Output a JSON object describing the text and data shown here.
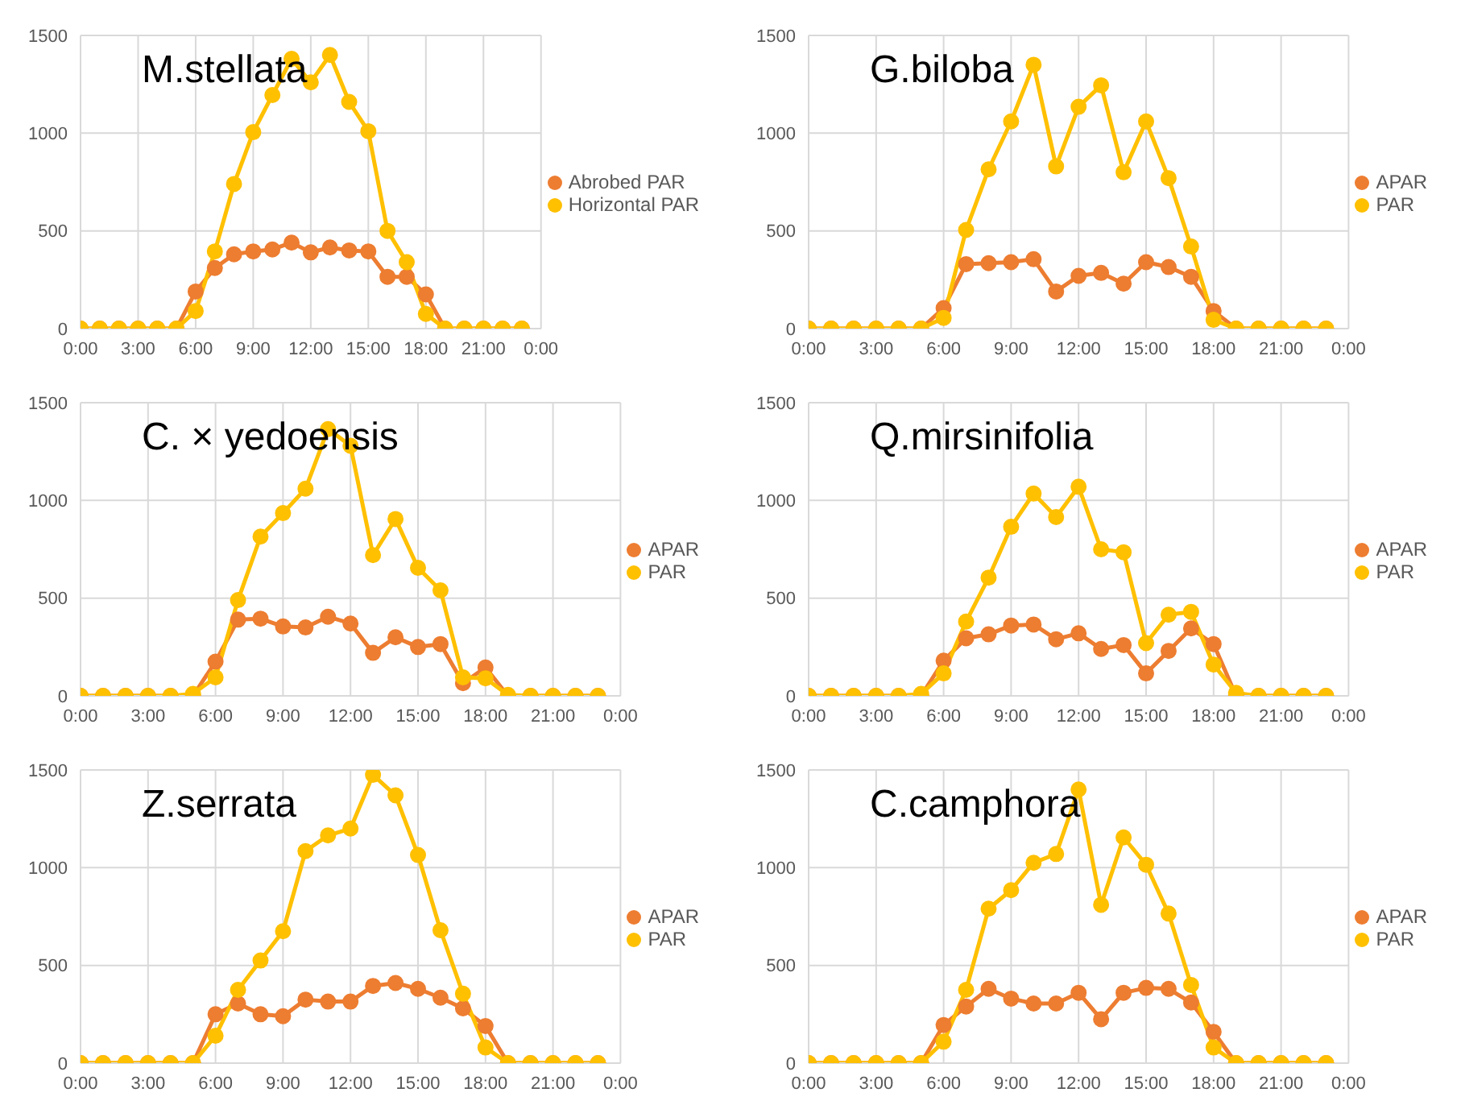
{
  "chart_data": [
    {
      "type": "line",
      "title": "M.stellata",
      "x": [
        0,
        1,
        2,
        3,
        4,
        5,
        6,
        7,
        8,
        9,
        10,
        11,
        12,
        13,
        14,
        15,
        16,
        17,
        18,
        19,
        20,
        21,
        22,
        23
      ],
      "xlim": [
        0,
        24
      ],
      "xticks": [
        {
          "value": 0,
          "label": "0:00"
        },
        {
          "value": 3,
          "label": "3:00"
        },
        {
          "value": 6,
          "label": "6:00"
        },
        {
          "value": 9,
          "label": "9:00"
        },
        {
          "value": 12,
          "label": "12:00"
        },
        {
          "value": 15,
          "label": "15:00"
        },
        {
          "value": 18,
          "label": "18:00"
        },
        {
          "value": 21,
          "label": "21:00"
        },
        {
          "value": 24,
          "label": "0:00"
        }
      ],
      "ylim": [
        0,
        1500
      ],
      "yticks": [
        0,
        500,
        1000,
        1500
      ],
      "grid": true,
      "legend": "right",
      "marker": "circle",
      "line_style": "solid",
      "series": [
        {
          "name": "Abrobed PAR",
          "color": "#ed7d31",
          "values": [
            0,
            0,
            0,
            0,
            0,
            0,
            190,
            310,
            380,
            395,
            405,
            440,
            390,
            415,
            400,
            395,
            265,
            265,
            175,
            0,
            0,
            0,
            0,
            0
          ]
        },
        {
          "name": "Horizontal PAR",
          "color": "#ffc000",
          "values": [
            0,
            0,
            0,
            0,
            0,
            0,
            90,
            395,
            740,
            1005,
            1195,
            1380,
            1260,
            1400,
            1160,
            1010,
            500,
            340,
            75,
            0,
            0,
            0,
            0,
            0
          ]
        }
      ]
    },
    {
      "type": "line",
      "title": "G.biloba",
      "x": [
        0,
        1,
        2,
        3,
        4,
        5,
        6,
        7,
        8,
        9,
        10,
        11,
        12,
        13,
        14,
        15,
        16,
        17,
        18,
        19,
        20,
        21,
        22,
        23
      ],
      "xlim": [
        0,
        24
      ],
      "xticks": [
        {
          "value": 0,
          "label": "0:00"
        },
        {
          "value": 3,
          "label": "3:00"
        },
        {
          "value": 6,
          "label": "6:00"
        },
        {
          "value": 9,
          "label": "9:00"
        },
        {
          "value": 12,
          "label": "12:00"
        },
        {
          "value": 15,
          "label": "15:00"
        },
        {
          "value": 18,
          "label": "18:00"
        },
        {
          "value": 21,
          "label": "21:00"
        },
        {
          "value": 24,
          "label": "0:00"
        }
      ],
      "ylim": [
        0,
        1500
      ],
      "yticks": [
        0,
        500,
        1000,
        1500
      ],
      "grid": true,
      "legend": "right",
      "marker": "circle",
      "line_style": "solid",
      "series": [
        {
          "name": "APAR",
          "color": "#ed7d31",
          "values": [
            0,
            0,
            0,
            0,
            0,
            0,
            105,
            330,
            335,
            340,
            355,
            190,
            270,
            285,
            230,
            340,
            315,
            265,
            90,
            0,
            0,
            0,
            0,
            0
          ]
        },
        {
          "name": "PAR",
          "color": "#ffc000",
          "values": [
            0,
            0,
            0,
            0,
            0,
            0,
            55,
            505,
            815,
            1060,
            1350,
            830,
            1135,
            1245,
            800,
            1060,
            770,
            420,
            45,
            0,
            0,
            0,
            0,
            0
          ]
        }
      ]
    },
    {
      "type": "line",
      "title": "C. × yedoensis",
      "x": [
        0,
        1,
        2,
        3,
        4,
        5,
        6,
        7,
        8,
        9,
        10,
        11,
        12,
        13,
        14,
        15,
        16,
        17,
        18,
        19,
        20,
        21,
        22,
        23
      ],
      "xlim": [
        0,
        24
      ],
      "xticks": [
        {
          "value": 0,
          "label": "0:00"
        },
        {
          "value": 3,
          "label": "3:00"
        },
        {
          "value": 6,
          "label": "6:00"
        },
        {
          "value": 9,
          "label": "9:00"
        },
        {
          "value": 12,
          "label": "12:00"
        },
        {
          "value": 15,
          "label": "15:00"
        },
        {
          "value": 18,
          "label": "18:00"
        },
        {
          "value": 21,
          "label": "21:00"
        },
        {
          "value": 24,
          "label": "0:00"
        }
      ],
      "ylim": [
        0,
        1500
      ],
      "yticks": [
        0,
        500,
        1000,
        1500
      ],
      "grid": true,
      "legend": "right",
      "marker": "circle",
      "line_style": "solid",
      "series": [
        {
          "name": "APAR",
          "color": "#ed7d31",
          "values": [
            0,
            0,
            0,
            0,
            0,
            0,
            175,
            390,
            395,
            355,
            350,
            405,
            370,
            220,
            300,
            250,
            265,
            65,
            145,
            0,
            0,
            0,
            0,
            0
          ]
        },
        {
          "name": "PAR",
          "color": "#ffc000",
          "values": [
            0,
            0,
            0,
            0,
            0,
            10,
            95,
            490,
            815,
            935,
            1060,
            1365,
            1280,
            720,
            905,
            655,
            540,
            95,
            90,
            5,
            0,
            0,
            0,
            0
          ]
        }
      ]
    },
    {
      "type": "line",
      "title": "Q.mirsinifolia",
      "x": [
        0,
        1,
        2,
        3,
        4,
        5,
        6,
        7,
        8,
        9,
        10,
        11,
        12,
        13,
        14,
        15,
        16,
        17,
        18,
        19,
        20,
        21,
        22,
        23
      ],
      "xlim": [
        0,
        24
      ],
      "xticks": [
        {
          "value": 0,
          "label": "0:00"
        },
        {
          "value": 3,
          "label": "3:00"
        },
        {
          "value": 6,
          "label": "6:00"
        },
        {
          "value": 9,
          "label": "9:00"
        },
        {
          "value": 12,
          "label": "12:00"
        },
        {
          "value": 15,
          "label": "15:00"
        },
        {
          "value": 18,
          "label": "18:00"
        },
        {
          "value": 21,
          "label": "21:00"
        },
        {
          "value": 24,
          "label": "0:00"
        }
      ],
      "ylim": [
        0,
        1500
      ],
      "yticks": [
        0,
        500,
        1000,
        1500
      ],
      "grid": true,
      "legend": "right",
      "marker": "circle",
      "line_style": "solid",
      "series": [
        {
          "name": "APAR",
          "color": "#ed7d31",
          "values": [
            0,
            0,
            0,
            0,
            0,
            0,
            180,
            295,
            315,
            360,
            365,
            290,
            320,
            240,
            260,
            115,
            230,
            345,
            265,
            0,
            0,
            0,
            0,
            0
          ]
        },
        {
          "name": "PAR",
          "color": "#ffc000",
          "values": [
            0,
            0,
            0,
            0,
            0,
            10,
            115,
            380,
            605,
            865,
            1035,
            915,
            1070,
            750,
            735,
            270,
            415,
            430,
            160,
            15,
            0,
            0,
            0,
            0
          ]
        }
      ]
    },
    {
      "type": "line",
      "title": "Z.serrata",
      "x": [
        0,
        1,
        2,
        3,
        4,
        5,
        6,
        7,
        8,
        9,
        10,
        11,
        12,
        13,
        14,
        15,
        16,
        17,
        18,
        19,
        20,
        21,
        22,
        23
      ],
      "xlim": [
        0,
        24
      ],
      "xticks": [
        {
          "value": 0,
          "label": "0:00"
        },
        {
          "value": 3,
          "label": "3:00"
        },
        {
          "value": 6,
          "label": "6:00"
        },
        {
          "value": 9,
          "label": "9:00"
        },
        {
          "value": 12,
          "label": "12:00"
        },
        {
          "value": 15,
          "label": "15:00"
        },
        {
          "value": 18,
          "label": "18:00"
        },
        {
          "value": 21,
          "label": "21:00"
        },
        {
          "value": 24,
          "label": "0:00"
        }
      ],
      "ylim": [
        0,
        1500
      ],
      "yticks": [
        0,
        500,
        1000,
        1500
      ],
      "grid": true,
      "legend": "right",
      "marker": "circle",
      "line_style": "solid",
      "series": [
        {
          "name": "APAR",
          "color": "#ed7d31",
          "values": [
            0,
            0,
            0,
            0,
            0,
            0,
            250,
            305,
            250,
            240,
            325,
            315,
            315,
            395,
            410,
            380,
            335,
            280,
            190,
            0,
            0,
            0,
            0,
            0
          ]
        },
        {
          "name": "PAR",
          "color": "#ffc000",
          "values": [
            0,
            0,
            0,
            0,
            0,
            0,
            140,
            375,
            525,
            675,
            1085,
            1165,
            1200,
            1475,
            1370,
            1065,
            680,
            355,
            80,
            0,
            0,
            0,
            0,
            0
          ]
        }
      ]
    },
    {
      "type": "line",
      "title": "C.camphora",
      "x": [
        0,
        1,
        2,
        3,
        4,
        5,
        6,
        7,
        8,
        9,
        10,
        11,
        12,
        13,
        14,
        15,
        16,
        17,
        18,
        19,
        20,
        21,
        22,
        23
      ],
      "xlim": [
        0,
        24
      ],
      "xticks": [
        {
          "value": 0,
          "label": "0:00"
        },
        {
          "value": 3,
          "label": "3:00"
        },
        {
          "value": 6,
          "label": "6:00"
        },
        {
          "value": 9,
          "label": "9:00"
        },
        {
          "value": 12,
          "label": "12:00"
        },
        {
          "value": 15,
          "label": "15:00"
        },
        {
          "value": 18,
          "label": "18:00"
        },
        {
          "value": 21,
          "label": "21:00"
        },
        {
          "value": 24,
          "label": "0:00"
        }
      ],
      "ylim": [
        0,
        1500
      ],
      "yticks": [
        0,
        500,
        1000,
        1500
      ],
      "grid": true,
      "legend": "right",
      "marker": "circle",
      "line_style": "solid",
      "series": [
        {
          "name": "APAR",
          "color": "#ed7d31",
          "values": [
            0,
            0,
            0,
            0,
            0,
            0,
            195,
            290,
            380,
            330,
            305,
            305,
            360,
            225,
            360,
            385,
            380,
            310,
            160,
            0,
            0,
            0,
            0,
            0
          ]
        },
        {
          "name": "PAR",
          "color": "#ffc000",
          "values": [
            0,
            0,
            0,
            0,
            0,
            0,
            110,
            375,
            790,
            885,
            1025,
            1070,
            1400,
            810,
            1155,
            1015,
            765,
            400,
            80,
            0,
            0,
            0,
            0,
            0
          ]
        }
      ]
    }
  ]
}
